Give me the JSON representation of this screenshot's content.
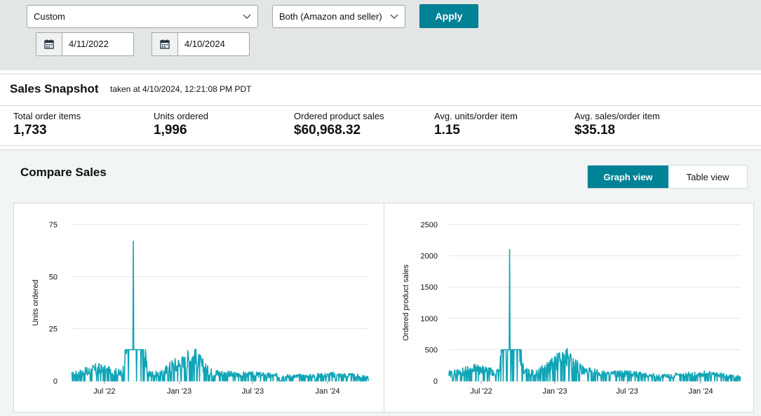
{
  "filters": {
    "date_range_select": "Custom",
    "fulfillment_select": "Both (Amazon and seller)",
    "apply_label": "Apply",
    "start_date": "4/11/2022",
    "end_date": "4/10/2024"
  },
  "snapshot": {
    "title": "Sales Snapshot",
    "taken": "taken at 4/10/2024, 12:21:08 PM PDT",
    "metrics": [
      {
        "label": "Total order items",
        "value": "1,733"
      },
      {
        "label": "Units ordered",
        "value": "1,996"
      },
      {
        "label": "Ordered product sales",
        "value": "$60,968.32"
      },
      {
        "label": "Avg. units/order item",
        "value": "1.15"
      },
      {
        "label": "Avg. sales/order item",
        "value": "$35.18"
      }
    ]
  },
  "compare": {
    "title": "Compare Sales",
    "graph_view_label": "Graph view",
    "table_view_label": "Table view"
  },
  "colors": {
    "accent": "#008296",
    "line": "#10a5b6",
    "topbar_bg": "#e3e6e6"
  },
  "chart_data": [
    {
      "type": "line",
      "title": "",
      "xlabel": "",
      "ylabel": "Units ordered",
      "x_ticks": [
        "Jul '22",
        "Jan '23",
        "Jul '23",
        "Jan '24"
      ],
      "y_ticks": [
        0,
        25,
        50,
        75
      ],
      "ylim": [
        0,
        75
      ],
      "xlim": [
        "2022-04-11",
        "2024-04-10"
      ],
      "grid": true,
      "series": [
        {
          "values_note": "daily units",
          "key_points": [
            {
              "x": "2022-04-15",
              "y": 4
            },
            {
              "x": "2022-05-15",
              "y": 6
            },
            {
              "x": "2022-06-15",
              "y": 8
            },
            {
              "x": "2022-07-15",
              "y": 6
            },
            {
              "x": "2022-08-15",
              "y": 5
            },
            {
              "x": "2022-09-10",
              "y": 67
            },
            {
              "x": "2022-10-15",
              "y": 5
            },
            {
              "x": "2022-11-15",
              "y": 4
            },
            {
              "x": "2022-12-15",
              "y": 10
            },
            {
              "x": "2023-01-15",
              "y": 12
            },
            {
              "x": "2023-02-01",
              "y": 17
            },
            {
              "x": "2023-03-15",
              "y": 6
            },
            {
              "x": "2023-05-15",
              "y": 4
            },
            {
              "x": "2023-07-15",
              "y": 4
            },
            {
              "x": "2023-09-15",
              "y": 3
            },
            {
              "x": "2023-11-15",
              "y": 3
            },
            {
              "x": "2024-01-15",
              "y": 4
            },
            {
              "x": "2024-03-15",
              "y": 3
            },
            {
              "x": "2024-04-10",
              "y": 2
            }
          ]
        }
      ]
    },
    {
      "type": "line",
      "title": "",
      "xlabel": "",
      "ylabel": "Ordered product sales",
      "x_ticks": [
        "Jul '22",
        "Jan '23",
        "Jul '23",
        "Jan '24"
      ],
      "y_ticks": [
        0,
        500,
        1000,
        1500,
        2000,
        2500
      ],
      "ylim": [
        0,
        2500
      ],
      "xlim": [
        "2022-04-11",
        "2024-04-10"
      ],
      "grid": true,
      "series": [
        {
          "values_note": "daily sales",
          "key_points": [
            {
              "x": "2022-04-15",
              "y": 150
            },
            {
              "x": "2022-05-15",
              "y": 200
            },
            {
              "x": "2022-06-15",
              "y": 250
            },
            {
              "x": "2022-07-15",
              "y": 200
            },
            {
              "x": "2022-08-15",
              "y": 180
            },
            {
              "x": "2022-09-10",
              "y": 2100
            },
            {
              "x": "2022-10-15",
              "y": 200
            },
            {
              "x": "2022-11-15",
              "y": 150
            },
            {
              "x": "2022-12-15",
              "y": 300
            },
            {
              "x": "2023-01-15",
              "y": 450
            },
            {
              "x": "2023-02-01",
              "y": 500
            },
            {
              "x": "2023-03-15",
              "y": 200
            },
            {
              "x": "2023-05-15",
              "y": 150
            },
            {
              "x": "2023-07-15",
              "y": 150
            },
            {
              "x": "2023-09-15",
              "y": 100
            },
            {
              "x": "2023-11-15",
              "y": 120
            },
            {
              "x": "2024-01-15",
              "y": 150
            },
            {
              "x": "2024-03-15",
              "y": 100
            },
            {
              "x": "2024-04-10",
              "y": 80
            }
          ]
        }
      ]
    }
  ]
}
